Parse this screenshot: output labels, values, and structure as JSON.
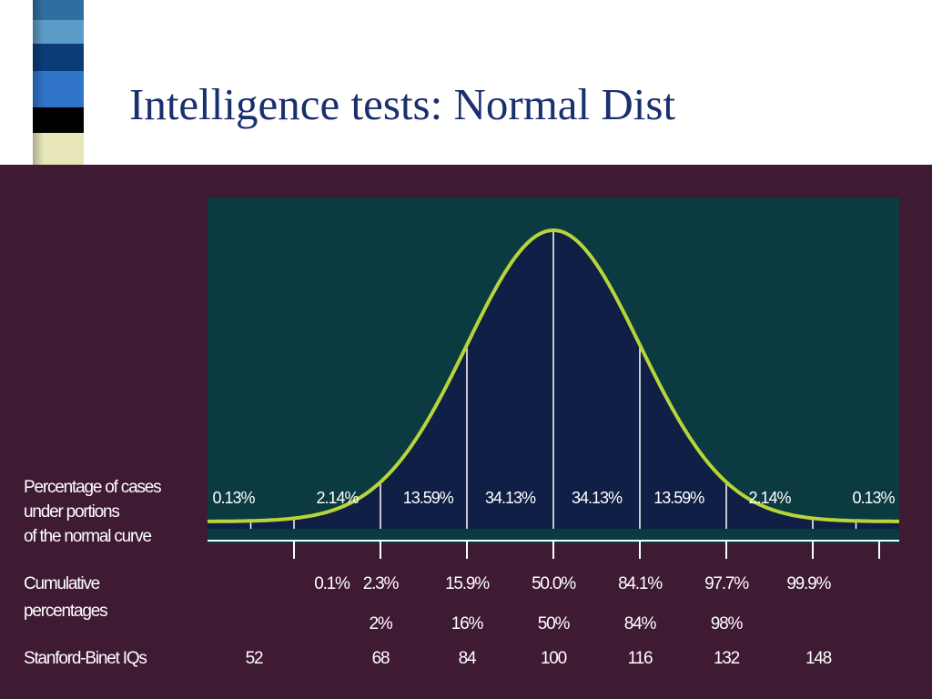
{
  "title": "Intelligence tests: Normal Dist",
  "colors": {
    "panel_bg": "#3f1a33",
    "plot_bg": "#0b3a40",
    "under_curve": "#0f1f46",
    "curve": "#b7d43a",
    "text": "#ffffff",
    "title": "#1a2f6e",
    "sidebar_blocks": [
      "#2f6fa0",
      "#5b9bc7",
      "#0c3c78",
      "#2f74c8",
      "#000000",
      "#e6e6b8"
    ]
  },
  "chart_data": {
    "type": "area",
    "distribution": "normal",
    "x_range_sd": [
      -4,
      4
    ],
    "boundaries_sd": [
      -3,
      -2,
      -1,
      0,
      1,
      2,
      3
    ],
    "row_labels": {
      "percentages": [
        "Percentage of cases",
        "under portions",
        "of the normal curve"
      ],
      "cumulative": [
        "Cumulative",
        "percentages"
      ],
      "iq": "Stanford-Binet IQs"
    },
    "segment_percentages": [
      "0.13%",
      "2.14%",
      "13.59%",
      "34.13%",
      "34.13%",
      "13.59%",
      "2.14%",
      "0.13%"
    ],
    "cumulative_percentages": [
      "0.1%",
      "2.3%",
      "15.9%",
      "50.0%",
      "84.1%",
      "97.7%",
      "99.9%"
    ],
    "cumulative_rounded": [
      "",
      "2%",
      "16%",
      "50%",
      "84%",
      "98%",
      ""
    ],
    "stanford_binet_iqs": [
      "52",
      "68",
      "84",
      "100",
      "116",
      "132",
      "148"
    ]
  }
}
